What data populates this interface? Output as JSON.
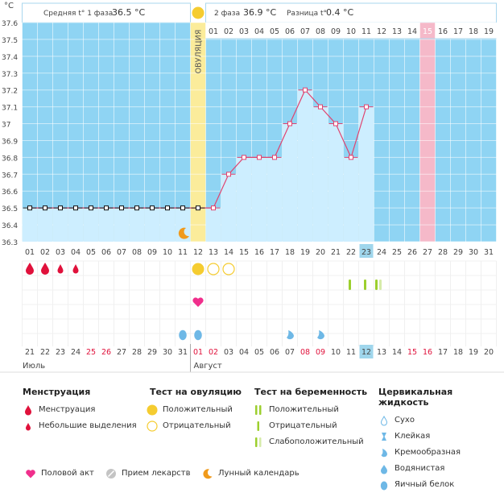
{
  "chart_data": {
    "type": "line",
    "title": "",
    "ylabel": "°C",
    "ylim": [
      36.3,
      37.6
    ],
    "yticks": [
      "37.6",
      "37.5",
      "37.4",
      "37.3",
      "37.2",
      "37.1",
      "37",
      "36.9",
      "36.8",
      "36.7",
      "36.6",
      "36.5",
      "36.4",
      "36.3"
    ],
    "header": {
      "phase1_label": "Средняя t° 1 фаза",
      "phase1_value": "36.5 °C",
      "phase2_label": "2 фаза",
      "phase2_value": "36.9 °C",
      "diff_label": "Разница t°",
      "diff_value": "0.4 °C"
    },
    "ovulation_label": "ОВУЛЯЦИЯ",
    "ovulation_day_index": 11,
    "phase2_day_labels": [
      "01",
      "02",
      "03",
      "04",
      "05",
      "06",
      "07",
      "08",
      "09",
      "10",
      "11",
      "12",
      "13",
      "14",
      "15",
      "16",
      "17",
      "18",
      "19"
    ],
    "highlight_phase2_day": "15",
    "cycle_days": [
      "01",
      "02",
      "03",
      "04",
      "05",
      "06",
      "07",
      "08",
      "09",
      "10",
      "11",
      "12",
      "13",
      "14",
      "15",
      "16",
      "17",
      "18",
      "19",
      "20",
      "21",
      "22",
      "23",
      "24",
      "25",
      "26",
      "27",
      "28",
      "29",
      "30",
      "31"
    ],
    "today_cycle_day": "23",
    "highlight_cycle_day": "27",
    "temperatures": [
      36.5,
      36.5,
      36.5,
      36.5,
      36.5,
      36.5,
      36.5,
      36.5,
      36.5,
      36.5,
      36.5,
      36.5,
      36.5,
      36.7,
      36.8,
      36.8,
      36.8,
      37.0,
      37.2,
      37.1,
      37.0,
      36.8,
      37.1,
      null,
      null,
      null,
      null,
      null,
      null,
      null,
      null
    ],
    "calendar_dates": [
      "21",
      "22",
      "23",
      "24",
      "25",
      "26",
      "27",
      "28",
      "29",
      "30",
      "31",
      "01",
      "02",
      "03",
      "04",
      "05",
      "06",
      "07",
      "08",
      "09",
      "10",
      "11",
      "12",
      "13",
      "14",
      "15",
      "16",
      "17",
      "18",
      "19",
      "20"
    ],
    "red_dates_idx": [
      4,
      5,
      11,
      12,
      18,
      19,
      25,
      26
    ],
    "today_date_idx": 22,
    "month1": "Июль",
    "month2": "Август",
    "markers": {
      "menstruation_big": [
        0,
        1
      ],
      "menstruation_small": [
        2,
        3
      ],
      "ovulation_positive": [
        11
      ],
      "ovulation_negative": [
        12,
        13
      ],
      "pregnancy_positive": [
        21,
        22
      ],
      "pregnancy_weak": [
        23
      ],
      "intercourse": [
        11
      ],
      "moon": [
        10
      ],
      "creamy": [
        17,
        19
      ],
      "egg_white": [
        10,
        11
      ]
    },
    "colors": {
      "sky": "#8fd4f3",
      "bar": "#cdeeff",
      "ovulation": "#fbec9b",
      "highlight": "#f5b9c9",
      "line": "#e0436f",
      "today": "#9fd6ec",
      "red": "#e0113b",
      "yellow": "#f5cc30",
      "green": "#9ccf2e",
      "drop": "#6eb8e6",
      "orange": "#f09a1c",
      "heart": "#f02f8c"
    }
  },
  "legend": {
    "menstruation": {
      "title": "Менструация",
      "items": [
        "Менструация",
        "Небольшие выделения"
      ]
    },
    "ovulation_test": {
      "title": "Тест на овуляцию",
      "items": [
        "Положительный",
        "Отрицательный"
      ]
    },
    "pregnancy_test": {
      "title": "Тест на беременность",
      "items": [
        "Положительный",
        "Отрицательный",
        "Слабоположительный"
      ]
    },
    "cervical": {
      "title": "Цервикальная жидкость",
      "items": [
        "Сухо",
        "Клейкая",
        "Кремообразная",
        "Водянистая",
        "Яичный белок"
      ]
    },
    "bottom": [
      "Половой акт",
      "Прием лекарств",
      "Лунный календарь"
    ]
  }
}
